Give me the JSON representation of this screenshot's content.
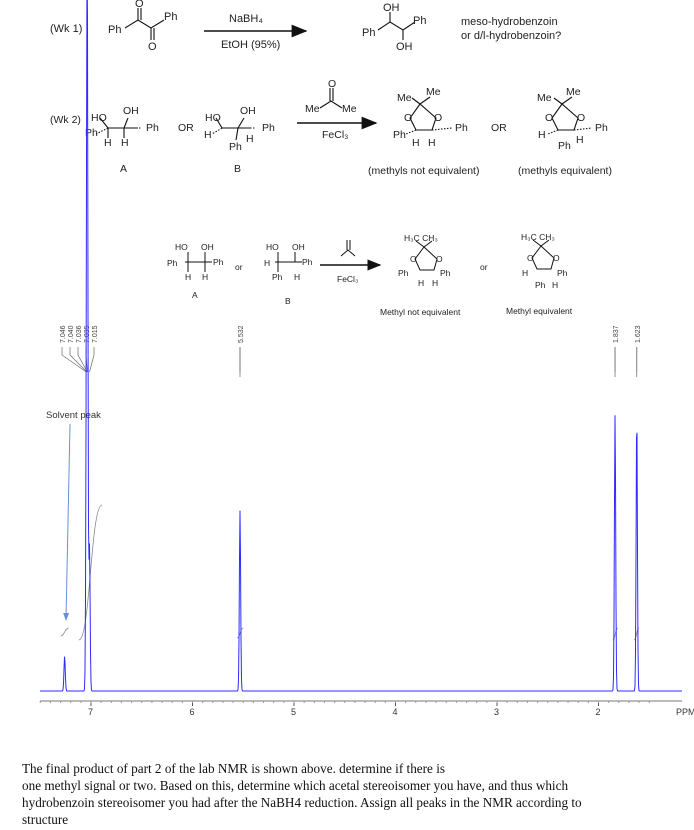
{
  "wk1": {
    "label": "(Wk 1)",
    "reagent_top": "NaBH₄",
    "reagent_bottom": "EtOH (95%)",
    "question_line1": "meso-hydrobenzoin",
    "question_line2": "or d/l-hydrobenzoin?"
  },
  "wk2": {
    "label": "(Wk 2)",
    "or_text": "OR",
    "reagent_bottom": "FeCl₃",
    "label_A": "A",
    "label_B": "B",
    "note_left": "(methyls not equivalent)",
    "note_right": "(methyls equivalent)"
  },
  "scheme2": {
    "or_text": "or",
    "label_A": "A",
    "label_B": "B",
    "reagent": "FeCl₃",
    "note_left": "Methyl not equivalent",
    "note_right": "Methyl equivalent"
  },
  "atoms": {
    "ph": "Ph",
    "ho": "HO",
    "oh": "OH",
    "h": "H",
    "o": "O",
    "me": "Me",
    "h3c_ch3": "H₃C  CH₃"
  },
  "nmr": {
    "solvent_label": "Solvent peak",
    "axis_unit": "PPM",
    "ticks": [
      "7",
      "6",
      "5",
      "4",
      "3",
      "2"
    ],
    "peak_labels": [
      "7.046",
      "7.040",
      "7.036",
      "7.035",
      "7.015",
      "5.532",
      "1.837",
      "1.623"
    ],
    "peaks_ppm": [
      7.26,
      7.046,
      7.04,
      7.036,
      7.035,
      7.015,
      5.532,
      1.837,
      1.623
    ],
    "peak_heights": [
      0.12,
      0.55,
      0.8,
      1.0,
      0.7,
      0.5,
      0.62,
      0.95,
      0.95
    ],
    "line_color": "#2c2cff"
  },
  "question": {
    "line1": "The final product of part 2 of the lab NMR is shown above. determine if there is",
    "line2": "one methyl signal or two. Based on this, determine which acetal stereoisomer you have, and thus which",
    "line3": "hydrobenzoin stereoisomer you had after the NaBH4 reduction. Assign all peaks in the NMR according to",
    "line4": "structure"
  }
}
